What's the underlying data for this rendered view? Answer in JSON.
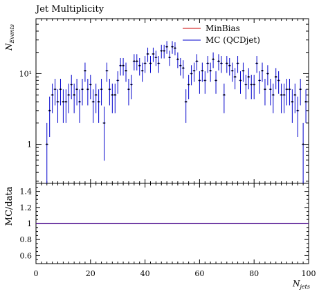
{
  "chart_data": {
    "type": "scatter",
    "title": "Jet Multiplicity",
    "xlabel": "N",
    "xlabel_sub": "jets",
    "ylabel": "N",
    "ylabel_sub": "Events",
    "ratio_ylabel": "MC/data",
    "xlim": [
      0,
      100
    ],
    "ylim_log": [
      0.28,
      60
    ],
    "ratio_ylim": [
      0.5,
      1.5
    ],
    "y_scale": "log",
    "grid": false,
    "legend_position": "top-right",
    "x_ticks": [
      0,
      20,
      40,
      60,
      80,
      100
    ],
    "y_ticks": [
      {
        "value": 1,
        "label": "1"
      },
      {
        "value": 10,
        "label": "10¹"
      }
    ],
    "ratio_ticks": [
      {
        "value": 0.6,
        "label": "0.6"
      },
      {
        "value": 0.8,
        "label": "0.8"
      },
      {
        "value": 1.0,
        "label": "1"
      },
      {
        "value": 1.2,
        "label": "1.2"
      },
      {
        "value": 1.4,
        "label": "1.4"
      }
    ],
    "series": [
      {
        "name": "MinBias",
        "color": "#cc0000",
        "style": "line"
      },
      {
        "name": "MC (QCDjet)",
        "color": "#0000cc",
        "style": "errorbar",
        "x": [
          4,
          5,
          6,
          7,
          8,
          9,
          10,
          11,
          12,
          13,
          14,
          15,
          16,
          17,
          18,
          19,
          20,
          21,
          22,
          23,
          24,
          25,
          26,
          27,
          28,
          29,
          30,
          31,
          32,
          33,
          34,
          35,
          36,
          37,
          38,
          39,
          40,
          41,
          42,
          43,
          44,
          45,
          46,
          47,
          48,
          49,
          50,
          51,
          52,
          53,
          54,
          55,
          56,
          57,
          58,
          59,
          60,
          61,
          62,
          63,
          64,
          65,
          66,
          67,
          68,
          69,
          70,
          71,
          72,
          73,
          74,
          75,
          76,
          77,
          78,
          79,
          80,
          81,
          82,
          83,
          84,
          85,
          86,
          87,
          88,
          89,
          90,
          91,
          92,
          93,
          94,
          95,
          96,
          97,
          98,
          99
        ],
        "y": [
          1,
          3,
          5,
          6,
          4,
          6,
          4,
          4,
          5,
          7,
          5,
          6,
          4,
          6,
          11,
          6,
          7,
          4,
          5,
          4,
          6,
          2,
          11,
          6,
          5,
          5,
          8,
          13,
          13,
          11,
          6,
          7,
          15,
          15,
          13,
          11,
          14,
          19,
          14,
          19,
          17,
          14,
          21,
          21,
          24,
          17,
          24,
          23,
          16,
          13,
          12,
          4,
          7,
          10,
          11,
          15,
          8,
          11,
          8,
          14,
          11,
          16,
          8,
          15,
          14,
          5,
          14,
          13,
          11,
          9,
          14,
          8,
          11,
          7,
          9,
          7,
          7,
          14,
          8,
          11,
          6,
          10,
          6,
          5,
          9,
          8,
          5,
          5,
          6,
          6,
          4,
          5,
          3,
          6,
          1,
          4
        ],
        "ratio": 1.0
      }
    ]
  }
}
